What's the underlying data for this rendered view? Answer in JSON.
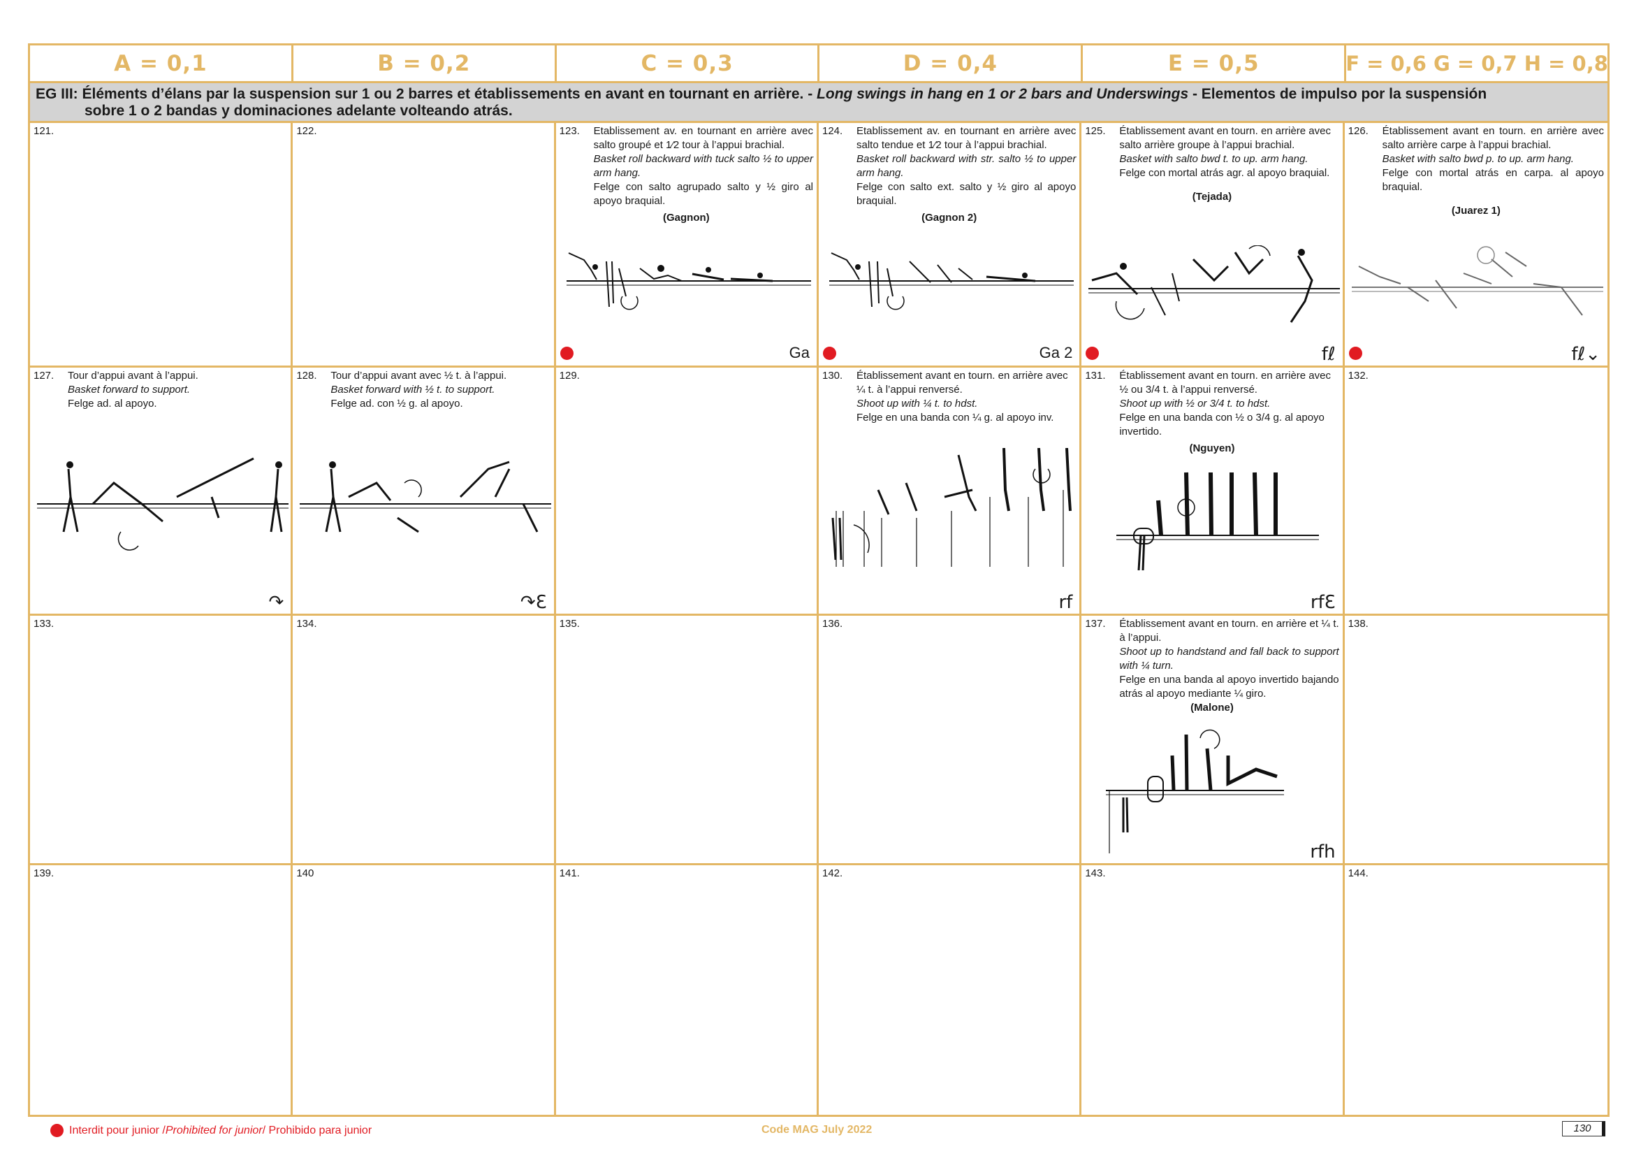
{
  "headers": [
    "A = 0,1",
    "B = 0,2",
    "C = 0,3",
    "D = 0,4",
    "E = 0,5",
    "F = 0,6 G = 0,7 H = 0,8"
  ],
  "group": {
    "prefix": "EG III: Éléments d’élans par la suspension sur 1 ou 2 barres et établissements en avant en tournant en arrière. - ",
    "en": "Long swings in hang en 1 or 2 bars and Underswings",
    "es1": " - Elementos de impulso por la suspensión",
    "es2": "sobre 1 o 2 bandas y dominaciones adelante volteando atrás."
  },
  "cells": {
    "c121": {
      "num": "121."
    },
    "c122": {
      "num": "122."
    },
    "c123": {
      "num": "123.",
      "fr": "Etablissement av. en tournant en arrière avec salto groupé et 1⁄2 tour à l’appui brachial.",
      "en": "Basket roll backward with tuck salto ½ to upper arm hang.",
      "es": "Felge con salto agrupado salto y ½ giro al apoyo braquial.",
      "name": "(Gagnon)",
      "abbr": "Ga"
    },
    "c124": {
      "num": "124.",
      "fr": "Etablissement av. en tournant en arrière avec salto tendue et 1⁄2 tour à l’appui brachial.",
      "en": "Basket roll backward with str. salto ½ to upper arm hang.",
      "es": "Felge con salto ext. salto y ½ giro al apoyo braquial.",
      "name": "(Gagnon 2)",
      "abbr": "Ga 2"
    },
    "c125": {
      "num": "125.",
      "fr": "Établissement avant en tourn. en arrière avec salto arrière groupe à l’appui brachial.",
      "en": "Basket with salto bwd t. to up. arm hang.",
      "es": "Felge con mortal atrás agr. al apoyo braquial.",
      "name": "(Tejada)",
      "sym": "fℓ"
    },
    "c126": {
      "num": "126.",
      "fr": "Établissement avant en tourn. en arrière avec salto arrière carpe à l’appui brachial.",
      "en": "Basket with salto bwd p. to up. arm hang.",
      "es": "Felge con mortal atrás en carpa. al apoyo braquial.",
      "name": "(Juarez 1)",
      "sym": "fℓ⌄"
    },
    "c127": {
      "num": "127.",
      "fr": "Tour d’appui avant à l’appui.",
      "en": "Basket forward to support.",
      "es": "Felge ad. al apoyo.",
      "sym": "↷"
    },
    "c128": {
      "num": "128.",
      "fr": "Tour d’appui avant avec ½ t. à l’appui.",
      "en": "Basket forward with ½ t. to support.",
      "es": "Felge ad. con ½ g. al apoyo.",
      "sym": "↷ℇ"
    },
    "c129": {
      "num": "129."
    },
    "c130": {
      "num": "130.",
      "fr": "Établissement avant en tourn. en arrière avec ¼ t. à l’appui renversé.",
      "en": "Shoot up with ¼ t. to hdst.",
      "es": "Felge en una banda con ¼ g. al apoyo inv.",
      "sym": "rf"
    },
    "c131": {
      "num": "131.",
      "fr": "Établissement avant en tourn. en arrière avec ½ ou 3/4 t. à l’appui renversé.",
      "en": "Shoot up with ½ or 3/4 t. to hdst.",
      "es": "Felge en una banda con ½ o 3/4 g. al apoyo invertido.",
      "name": "(Nguyen)",
      "sym": "rfℇ"
    },
    "c132": {
      "num": "132."
    },
    "c133": {
      "num": "133."
    },
    "c134": {
      "num": "134."
    },
    "c135": {
      "num": "135."
    },
    "c136": {
      "num": "136."
    },
    "c137": {
      "num": "137.",
      "fr": "Établissement avant en tourn. en arrière et ¼ t. à l’appui.",
      "en": "Shoot up to handstand and fall back to support with ¼ turn.",
      "es": "Felge en una banda al apoyo invertido bajando atrás al apoyo mediante ¼ giro.",
      "name": "(Malone)",
      "sym": "rfh"
    },
    "c138": {
      "num": "138."
    },
    "c139": {
      "num": "139."
    },
    "c140": {
      "num": "140"
    },
    "c141": {
      "num": "141."
    },
    "c142": {
      "num": "142."
    },
    "c143": {
      "num": "143."
    },
    "c144": {
      "num": "144."
    }
  },
  "footer": {
    "legend_fr": "Interdit pour junior / ",
    "legend_en": "Prohibited for junior",
    "legend_es": " / Prohibido para junior",
    "code": "Code MAG July 2022",
    "page": "130"
  },
  "colors": {
    "gold": "#e3b765",
    "red": "#e11b22",
    "gray": "#d3d3d3"
  }
}
